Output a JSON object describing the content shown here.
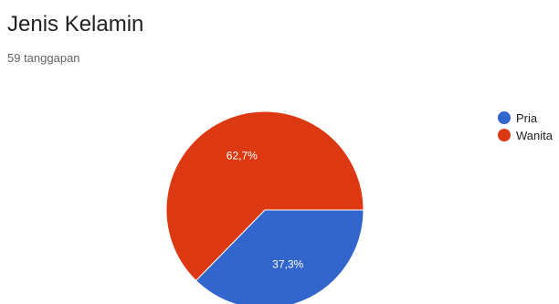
{
  "header": {
    "title": "Jenis Kelamin",
    "responses": "59 tanggapan"
  },
  "chart_data": {
    "type": "pie",
    "title": "Jenis Kelamin",
    "categories": [
      "Pria",
      "Wanita"
    ],
    "values": [
      37.3,
      62.7
    ],
    "labels": [
      "37,3%",
      "62,7%"
    ],
    "colors": [
      "#3366cc",
      "#dc3912"
    ],
    "legend_position": "right"
  }
}
